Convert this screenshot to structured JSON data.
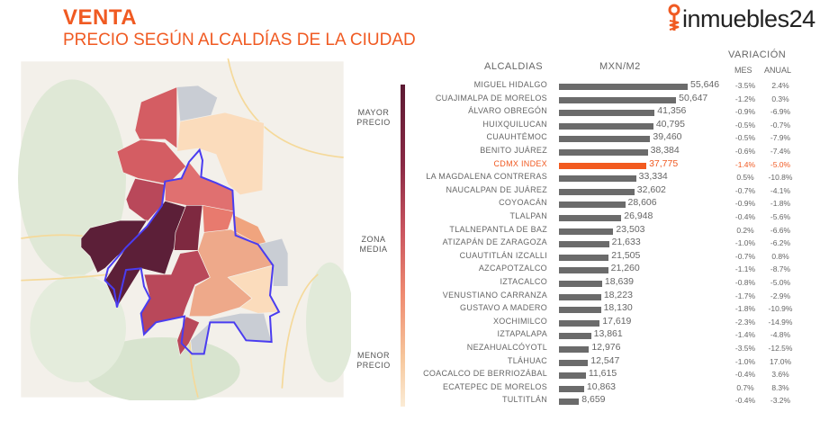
{
  "header": {
    "title": "VENTA",
    "subtitle": "PRECIO SEGÚN ALCALDÍAS DE LA CIUDAD",
    "logo_text": "inmuebles24"
  },
  "legend": {
    "high": "MAYOR PRECIO",
    "mid": "ZONA MEDIA",
    "low": "MENOR PRECIO"
  },
  "colors": {
    "accent": "#f05a22",
    "bar": "#6b6b6b",
    "outline": "#4a3cf0"
  },
  "chart_data": {
    "type": "bar",
    "title": "PRECIO SEGÚN ALCALDÍAS DE LA CIUDAD",
    "xlabel": "MXN/M2",
    "ylabel": "ALCALDIAS",
    "variation_header": "VARIACIÓN",
    "mes_header": "MES",
    "anual_header": "ANUAL",
    "highlight": "CDMX INDEX",
    "categories": [
      "MIGUEL HIDALGO",
      "CUAJIMALPA DE MORELOS",
      "ÁLVARO OBREGÓN",
      "HUIXQUILUCAN",
      "CUAUHTÉMOC",
      "BENITO JUÁREZ",
      "CDMX INDEX",
      "LA MAGDALENA CONTRERAS",
      "NAUCALPAN DE JUÁREZ",
      "COYOACÁN",
      "TLALPAN",
      "TLALNEPANTLA DE BAZ",
      "ATIZAPÁN DE ZARAGOZA",
      "CUAUTITLÁN IZCALLI",
      "AZCAPOTZALCO",
      "IZTACALCO",
      "VENUSTIANO CARRANZA",
      "GUSTAVO A MADERO",
      "XOCHIMILCO",
      "IZTAPALAPA",
      "NEZAHUALCÓYOTL",
      "TLÁHUAC",
      "COACALCO DE BERRIOZÁBAL",
      "ECATEPEC DE MORELOS",
      "TULTITLÁN"
    ],
    "values": [
      55646,
      50647,
      41356,
      40795,
      39460,
      38384,
      37775,
      33334,
      32602,
      28606,
      26948,
      23503,
      21633,
      21505,
      21260,
      18639,
      18223,
      18130,
      17619,
      13861,
      12976,
      12547,
      11615,
      10863,
      8659
    ],
    "labels": [
      "55,646",
      "50,647",
      "41,356",
      "40,795",
      "39,460",
      "38,384",
      "37,775",
      "33,334",
      "32,602",
      "28,606",
      "26,948",
      "23,503",
      "21,633",
      "21,505",
      "21,260",
      "18,639",
      "18,223",
      "18,130",
      "17,619",
      "13,861",
      "12,976",
      "12,547",
      "11,615",
      "10,863",
      "8,659"
    ],
    "mes": [
      "-3.5%",
      "-1.2%",
      "-0.9%",
      "-0.5%",
      "-0.5%",
      "-0.6%",
      "-1.4%",
      "0.5%",
      "-0.7%",
      "-0.9%",
      "-0.4%",
      "0.2%",
      "-1.0%",
      "-0.7%",
      "-1.1%",
      "-0.8%",
      "-1.7%",
      "-1.8%",
      "-2.3%",
      "-1.4%",
      "-3.5%",
      "-1.0%",
      "-0.4%",
      "0.7%",
      "-0.4%"
    ],
    "anual": [
      "2.4%",
      "0.3%",
      "-6.9%",
      "-0.7%",
      "-7.9%",
      "-7.4%",
      "-5.0%",
      "-10.8%",
      "-4.1%",
      "-1.8%",
      "-5.6%",
      "-6.6%",
      "-6.2%",
      "0.8%",
      "-8.7%",
      "-5.0%",
      "-2.9%",
      "-10.9%",
      "-14.9%",
      "-4.8%",
      "-12.5%",
      "17.0%",
      "3.6%",
      "8.3%",
      "-3.2%"
    ]
  }
}
